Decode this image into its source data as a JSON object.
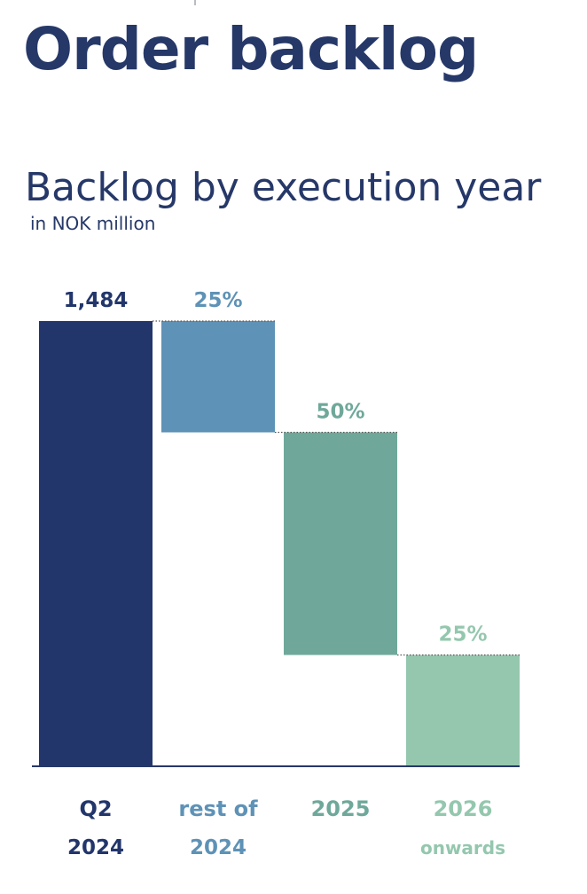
{
  "page": {
    "title": "Order backlog"
  },
  "chart_data": {
    "type": "bar",
    "subtype": "waterfall",
    "title": "Backlog by execution year",
    "subtitle": "in NOK million",
    "total": 1484,
    "categories": [
      {
        "line1": "Q2",
        "line2": "2024"
      },
      {
        "line1": "rest of",
        "line2": "2024"
      },
      {
        "line1": "2025",
        "line2": ""
      },
      {
        "line1": "2026",
        "line2": "onwards"
      }
    ],
    "values": [
      1484,
      371,
      742,
      371
    ],
    "percent_share": [
      null,
      25,
      50,
      25
    ],
    "data_labels": [
      "1,484",
      "25%",
      "50%",
      "25%"
    ],
    "ylim": [
      0,
      1484
    ],
    "colors": [
      "#22366b",
      "#5e92b6",
      "#6fa89a",
      "#94c7ae"
    ],
    "label_colors": [
      "#22366b",
      "#5e92b6",
      "#6fa89a",
      "#94c7ae"
    ],
    "axis_color": "#263868",
    "connector_color": "#555555",
    "grid": false,
    "legend": "none"
  }
}
